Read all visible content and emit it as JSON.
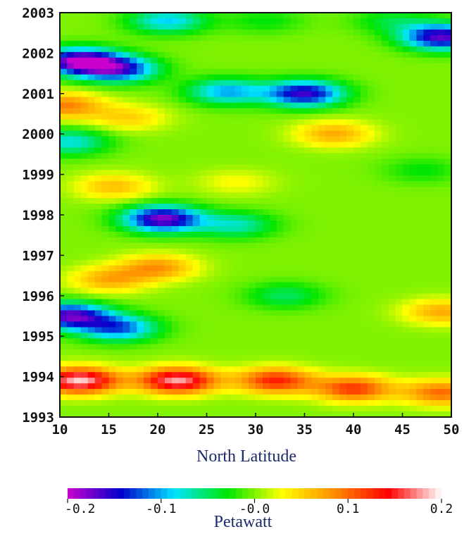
{
  "chart_data": {
    "type": "heatmap",
    "title": "",
    "xlabel": "North Latitude",
    "ylabel": "",
    "xlim": [
      10,
      50
    ],
    "ylim": [
      1993,
      2003
    ],
    "x_ticks": [
      "10",
      "15",
      "20",
      "25",
      "30",
      "35",
      "40",
      "45",
      "50"
    ],
    "y_ticks": [
      "1993",
      "1994",
      "1995",
      "1996",
      "1997",
      "1998",
      "1999",
      "2000",
      "2001",
      "2002",
      "2003"
    ],
    "colorbar": {
      "label": "Petawatt",
      "range": [
        -0.2,
        0.2
      ],
      "ticks": [
        {
          "value": -0.2,
          "label": "-0.2"
        },
        {
          "value": -0.1,
          "label": "-0.1"
        },
        {
          "value": 0.0,
          "label": "-0.0"
        },
        {
          "value": 0.1,
          "label": "0.1"
        },
        {
          "value": 0.2,
          "label": "0.2"
        }
      ],
      "colormap": [
        "#cc00cc",
        "#0000cc",
        "#00e5ff",
        "#00e600",
        "#ffff00",
        "#ff8c00",
        "#ff0000",
        "#ffffff"
      ]
    },
    "features": [
      {
        "x": 12,
        "y": 1993.9,
        "value": 0.19
      },
      {
        "x": 22,
        "y": 1993.9,
        "value": 0.18
      },
      {
        "x": 32,
        "y": 1993.9,
        "value": 0.13
      },
      {
        "x": 40,
        "y": 1993.7,
        "value": 0.12
      },
      {
        "x": 49,
        "y": 1993.6,
        "value": 0.1
      },
      {
        "x": 11,
        "y": 1995.5,
        "value": -0.17
      },
      {
        "x": 16,
        "y": 1995.2,
        "value": -0.12
      },
      {
        "x": 49,
        "y": 1995.6,
        "value": 0.07
      },
      {
        "x": 33,
        "y": 1996.0,
        "value": -0.05
      },
      {
        "x": 15,
        "y": 1996.4,
        "value": 0.07
      },
      {
        "x": 20,
        "y": 1996.7,
        "value": 0.08
      },
      {
        "x": 20.5,
        "y": 1997.9,
        "value": -0.18
      },
      {
        "x": 28,
        "y": 1997.75,
        "value": -0.07
      },
      {
        "x": 15.5,
        "y": 1998.7,
        "value": 0.06
      },
      {
        "x": 28,
        "y": 1998.8,
        "value": 0.03
      },
      {
        "x": 47,
        "y": 1999.1,
        "value": -0.03
      },
      {
        "x": 11,
        "y": 1999.8,
        "value": -0.08
      },
      {
        "x": 38,
        "y": 2000.0,
        "value": 0.07
      },
      {
        "x": 10.5,
        "y": 2000.7,
        "value": 0.09
      },
      {
        "x": 17,
        "y": 2000.4,
        "value": 0.05
      },
      {
        "x": 35,
        "y": 2001.0,
        "value": -0.16
      },
      {
        "x": 27,
        "y": 2001.05,
        "value": -0.1
      },
      {
        "x": 12,
        "y": 2001.8,
        "value": -0.19
      },
      {
        "x": 16,
        "y": 2001.6,
        "value": -0.14
      },
      {
        "x": 21,
        "y": 2002.8,
        "value": -0.09
      },
      {
        "x": 31,
        "y": 2002.8,
        "value": -0.03
      },
      {
        "x": 49,
        "y": 2002.4,
        "value": -0.17
      },
      {
        "x": 44,
        "y": 2002.8,
        "value": -0.04
      }
    ]
  }
}
